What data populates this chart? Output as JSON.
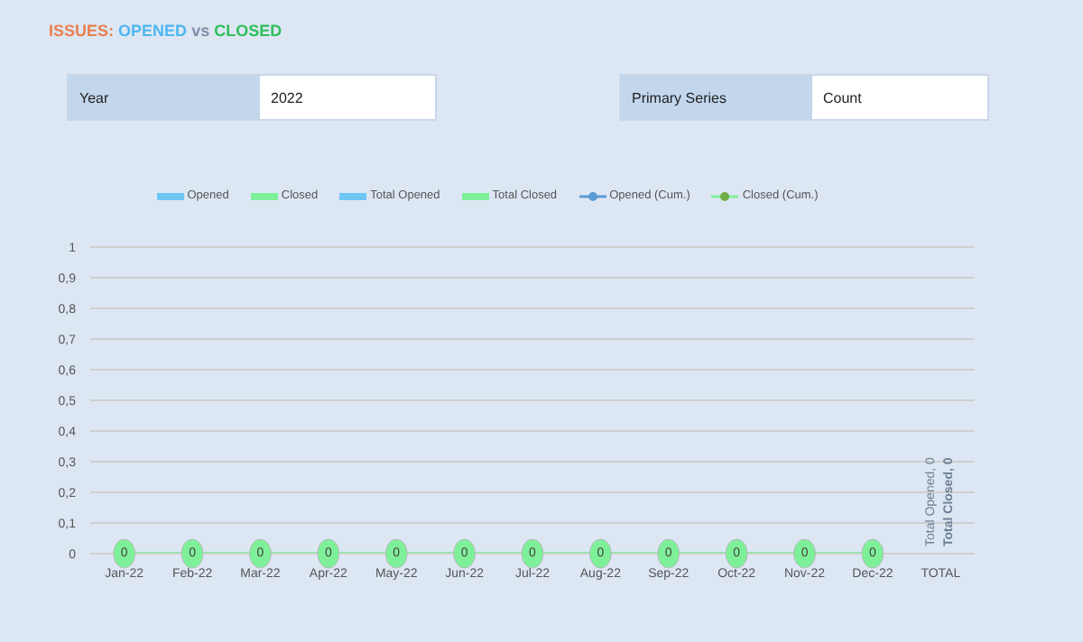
{
  "chart_data": {
    "type": "bar",
    "title": "ISSUES: OPENED vs CLOSED",
    "annotations": [
      "Year",
      "2022",
      "Primary Series",
      "Count"
    ],
    "categories": [
      "Jan-22",
      "Feb-22",
      "Mar-22",
      "Apr-22",
      "May-22",
      "Jun-22",
      "Jul-22",
      "Aug-22",
      "Sep-22",
      "Oct-22",
      "Nov-22",
      "Dec-22",
      "TOTAL"
    ],
    "series": [
      {
        "name": "Opened",
        "color": "#6ec6f5",
        "values": [
          0,
          0,
          0,
          0,
          0,
          0,
          0,
          0,
          0,
          0,
          0,
          0,
          null
        ]
      },
      {
        "name": "Closed",
        "color": "#7ef09a",
        "values": [
          0,
          0,
          0,
          0,
          0,
          0,
          0,
          0,
          0,
          0,
          0,
          0,
          null
        ]
      },
      {
        "name": "Total Opened",
        "color": "#6ec6f5",
        "values": [
          null,
          null,
          null,
          null,
          null,
          null,
          null,
          null,
          null,
          null,
          null,
          null,
          0
        ],
        "value_labels": [
          null,
          null,
          null,
          null,
          null,
          null,
          null,
          null,
          null,
          null,
          null,
          null,
          "Total Opened, 0"
        ]
      },
      {
        "name": "Total Closed",
        "color": "#7ef09a",
        "values": [
          null,
          null,
          null,
          null,
          null,
          null,
          null,
          null,
          null,
          null,
          null,
          null,
          0
        ],
        "value_labels": [
          null,
          null,
          null,
          null,
          null,
          null,
          null,
          null,
          null,
          null,
          null,
          null,
          "Total Closed, 0"
        ]
      },
      {
        "name": "Opened (Cum.)",
        "type": "line",
        "color": "#5b9bd5",
        "marker": "circle",
        "values": [
          null,
          null,
          null,
          null,
          null,
          null,
          null,
          null,
          null,
          null,
          null,
          null,
          null
        ]
      },
      {
        "name": "Closed (Cum.)",
        "type": "line",
        "color": "#7ef09a",
        "marker": "circle",
        "values": [
          0,
          0,
          0,
          0,
          0,
          0,
          0,
          0,
          0,
          0,
          0,
          0,
          null
        ],
        "value_labels": [
          "0",
          "0",
          "0",
          "0",
          "0",
          "0",
          "0",
          "0",
          "0",
          "0",
          "0",
          "0",
          null
        ]
      }
    ],
    "ylim": [
      0,
      1
    ],
    "yticks": [
      0,
      {
        "value": 0.1,
        "label": "0,1"
      },
      {
        "value": 0.2,
        "label": "0,2"
      },
      {
        "value": 0.3,
        "label": "0,3"
      },
      {
        "value": 0.4,
        "label": "0,4"
      },
      {
        "value": 0.5,
        "label": "0,5"
      },
      {
        "value": 0.6,
        "label": "0,6"
      },
      {
        "value": 0.7,
        "label": "0,7"
      },
      {
        "value": 0.8,
        "label": "0,8"
      },
      {
        "value": 0.9,
        "label": "0,9"
      },
      1
    ],
    "grid": "y",
    "legend": "top"
  }
}
